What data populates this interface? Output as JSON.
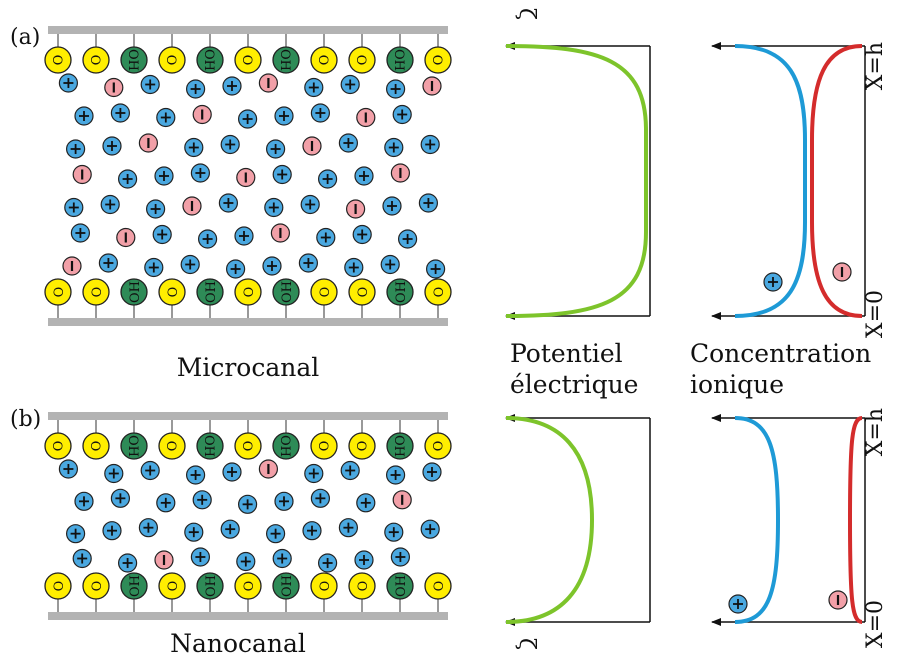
{
  "panels": [
    {
      "tag": "(a)",
      "caption": "Microcanal",
      "surface_pattern": [
        "O",
        "O",
        "OH",
        "O",
        "OH",
        "O",
        "OH",
        "O",
        "O",
        "OH",
        "O"
      ],
      "cation_rows": 7,
      "anion_count": 15,
      "potential_symbol": "ζ",
      "conc_top_label": "X=h",
      "conc_bottom_label": "X=0",
      "cation_marker": "+",
      "anion_marker": "-"
    },
    {
      "tag": "(b)",
      "caption": "Nanocanal",
      "surface_pattern": [
        "O",
        "O",
        "OH",
        "O",
        "OH",
        "O",
        "OH",
        "O",
        "O",
        "OH",
        "O"
      ],
      "cation_rows": 4,
      "anion_count": 3,
      "potential_symbol": "ζ",
      "conc_top_label": "X=h",
      "conc_bottom_label": "X=0",
      "cation_marker": "+",
      "anion_marker": "-"
    }
  ],
  "plot_titles": {
    "potential": [
      "Potentiel",
      "électrique"
    ],
    "concentration": [
      "Concentration",
      "ionique"
    ]
  },
  "colors": {
    "wall": "#b3b3b3",
    "site_O": "#ffee00",
    "site_OH": "#2e8b57",
    "cation": "#4aa8e0",
    "anion": "#f2a0a8",
    "potential_curve": "#7dc42b",
    "cation_curve": "#1e9ad6",
    "anion_curve": "#d42c2c"
  }
}
